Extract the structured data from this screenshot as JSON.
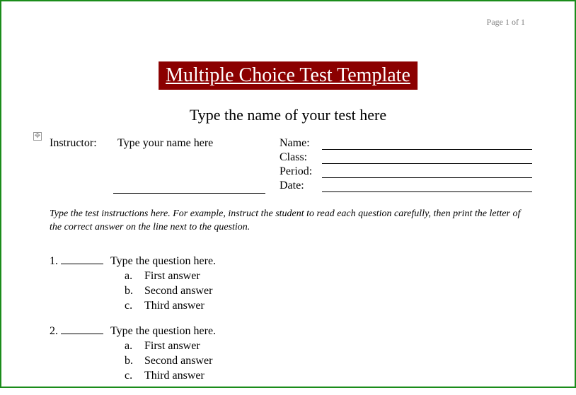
{
  "page_number": "Page 1 of 1",
  "title": "Multiple Choice Test Template",
  "subtitle": "Type the name of your test here",
  "colors": {
    "title_bg": "#8b0000",
    "title_fg": "#ffffff",
    "page_num": "#808080",
    "border": "#1a8c1a",
    "text": "#000000"
  },
  "info": {
    "instructor_label": "Instructor:",
    "instructor_value": "Type your name here",
    "fields": [
      {
        "label": "Name:"
      },
      {
        "label": "Class:"
      },
      {
        "label": "Period:"
      },
      {
        "label": "Date:"
      }
    ]
  },
  "instructions": "Type the test instructions here.  For example, instruct the student to read each question carefully, then print the letter of the correct answer on the line next to the question.",
  "questions": [
    {
      "num": "1.",
      "text": "Type the question here.",
      "answers": [
        {
          "letter": "a.",
          "text": "First answer"
        },
        {
          "letter": "b.",
          "text": "Second answer"
        },
        {
          "letter": "c.",
          "text": "Third answer"
        }
      ]
    },
    {
      "num": "2.",
      "text": "Type the question here.",
      "answers": [
        {
          "letter": "a.",
          "text": "First answer"
        },
        {
          "letter": "b.",
          "text": "Second answer"
        },
        {
          "letter": "c.",
          "text": "Third answer"
        }
      ]
    }
  ]
}
